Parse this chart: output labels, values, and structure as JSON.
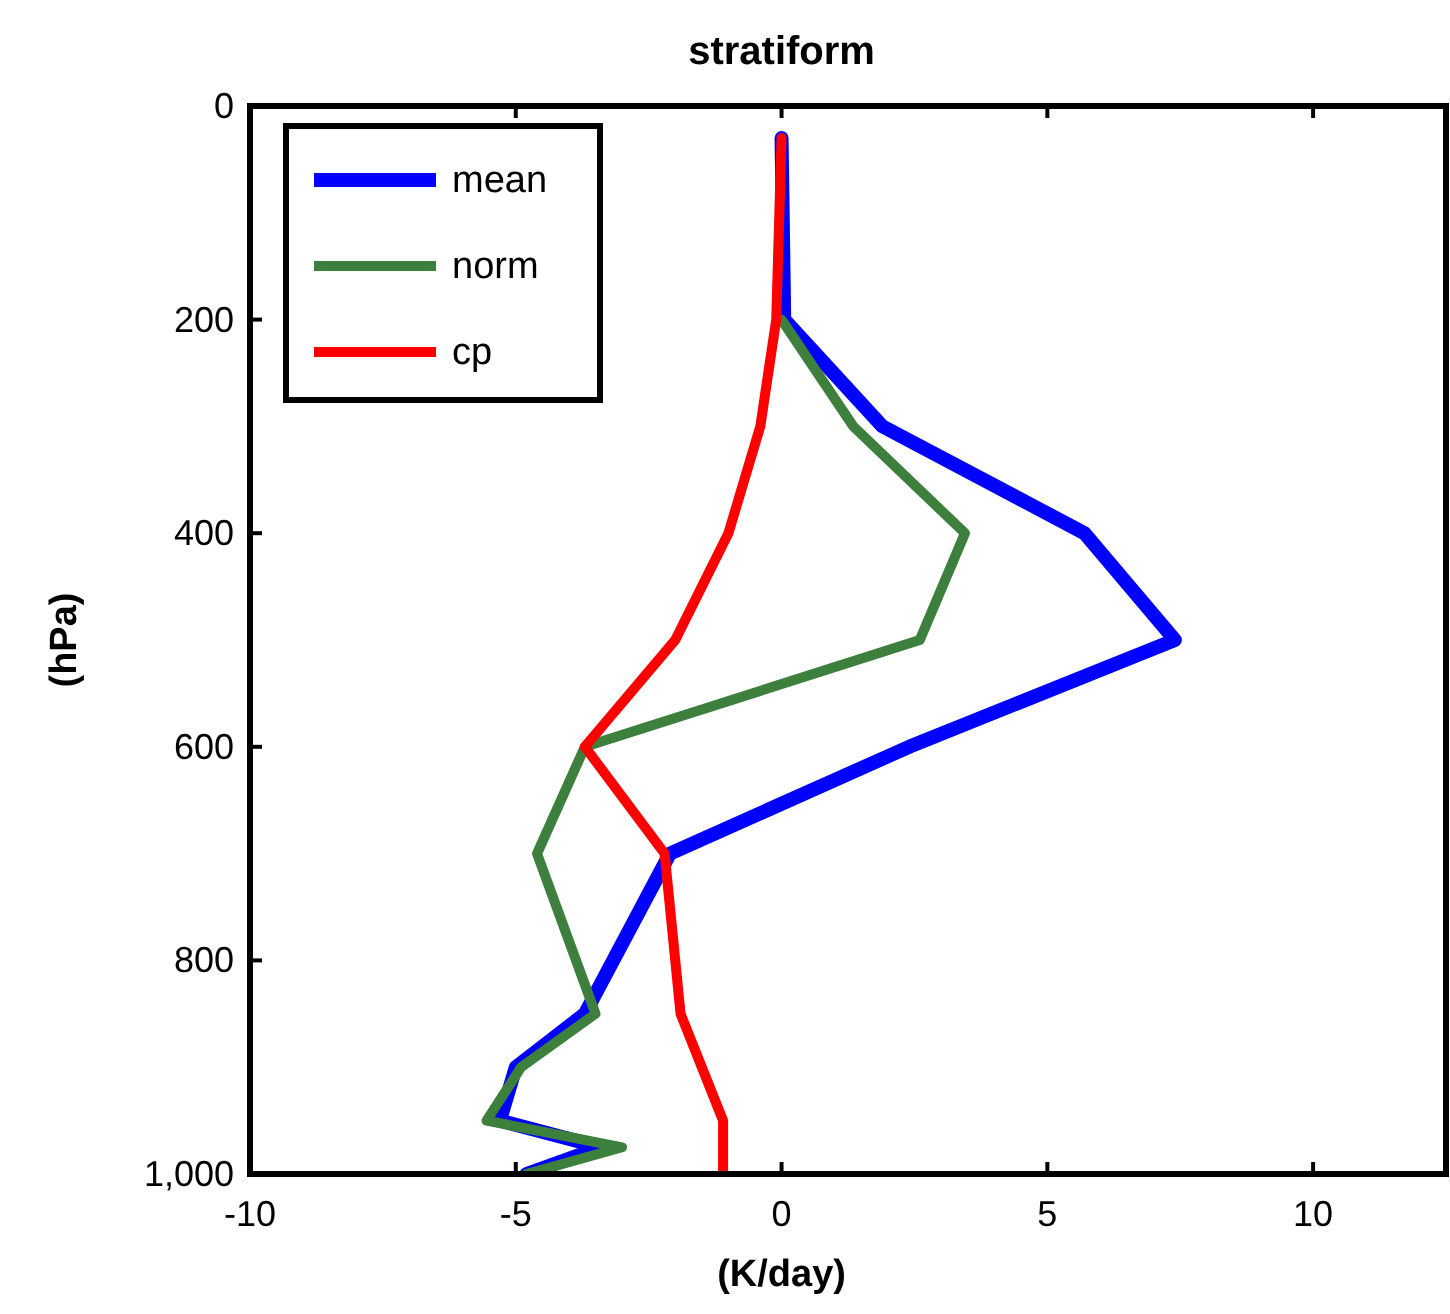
{
  "chart_data": {
    "type": "line",
    "title": "stratiform",
    "xlabel": "(K/day)",
    "ylabel": "(hPa)",
    "xlim": [
      -10,
      12.5
    ],
    "xticks": [
      -10,
      -5,
      0,
      5,
      10
    ],
    "ylim": [
      1000,
      0
    ],
    "yticks": [
      0,
      200,
      400,
      600,
      800,
      {
        "value": 1000,
        "label": "1,000"
      }
    ],
    "grid": false,
    "legend": "top left",
    "marker": "none",
    "line_style": "solid",
    "series": [
      {
        "name": "mean",
        "color": "#0000ff",
        "x": [
          0,
          0.05,
          1.9,
          5.7,
          7.4,
          2.4,
          -2.1,
          -3.7,
          -5,
          -5.3,
          -3.4,
          -4.8
        ],
        "values": [
          30,
          200,
          300,
          400,
          500,
          600,
          700,
          850,
          900,
          950,
          975,
          1000
        ]
      },
      {
        "name": "norm",
        "color": "#3d7f3d",
        "x": [
          0,
          1.35,
          3.45,
          2.6,
          -3.7,
          -4.6,
          -3.5,
          -4.9,
          -5.55,
          -3,
          -4.8
        ],
        "values": [
          200,
          300,
          400,
          500,
          600,
          700,
          850,
          900,
          950,
          975,
          1000
        ]
      },
      {
        "name": "cp",
        "color": "#ff0000",
        "x": [
          0,
          -0.1,
          -0.4,
          -1,
          -2,
          -3.7,
          -2.2,
          -1.9,
          -1.1,
          -1.1
        ],
        "values": [
          30,
          200,
          300,
          400,
          500,
          600,
          700,
          850,
          950,
          1000
        ]
      }
    ]
  }
}
